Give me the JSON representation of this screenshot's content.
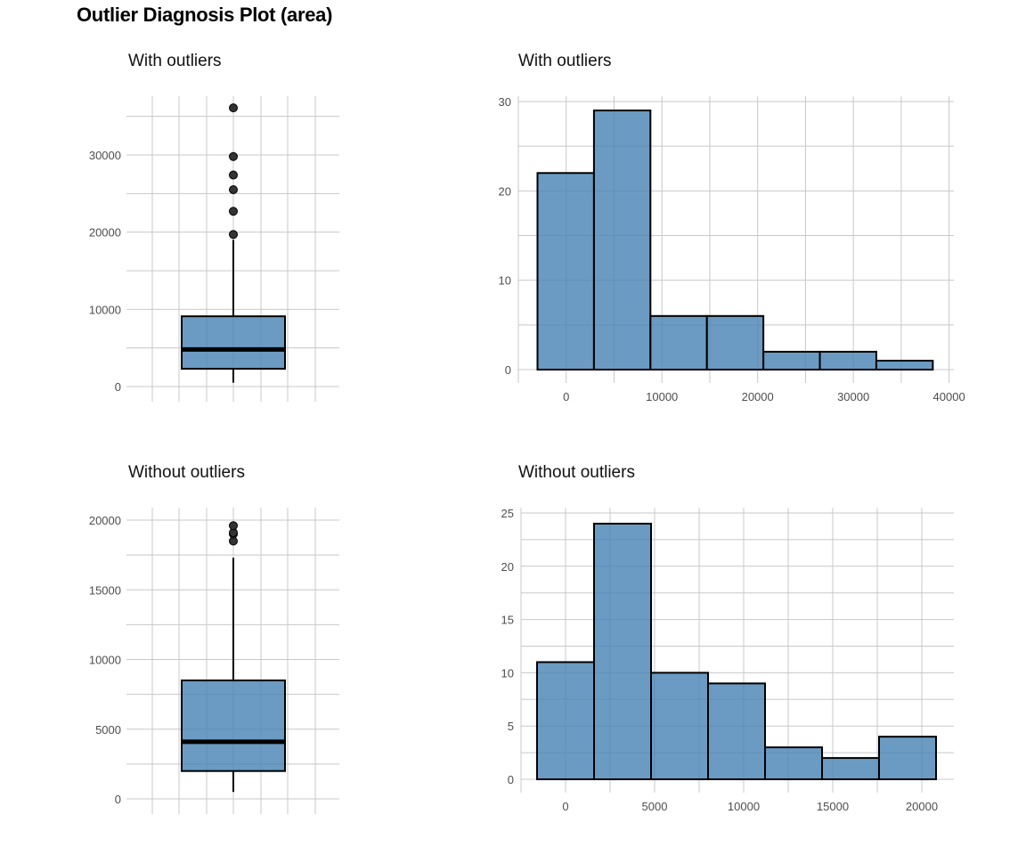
{
  "title": "Outlier Diagnosis Plot (area)",
  "colors": {
    "fill": "#4682b4",
    "fill_opacity": 0.8,
    "stroke": "#000000",
    "grid": "#c8c8c8",
    "tick_label": "#4d4d4d",
    "outlier": "#333333"
  },
  "chart_data": [
    {
      "type": "box",
      "title": "With outliers",
      "y_ticks": [
        0,
        10000,
        20000,
        30000
      ],
      "ylim": [
        0,
        36000
      ],
      "grid": true,
      "stats": {
        "whisker_low": 500,
        "q1": 2300,
        "median": 4800,
        "q3": 9100,
        "whisker_high": 19000
      },
      "outliers": [
        19700,
        22700,
        25500,
        27400,
        29800,
        36100
      ]
    },
    {
      "type": "bar",
      "title": "With outliers",
      "x_ticks": [
        0,
        10000,
        20000,
        30000,
        40000
      ],
      "y_ticks": [
        0,
        10,
        20,
        30
      ],
      "xlim": [
        -5000,
        40500
      ],
      "ylim": [
        0,
        30
      ],
      "grid": true,
      "bins": [
        {
          "x0": -3000,
          "x1": 2900,
          "count": 22
        },
        {
          "x0": 2900,
          "x1": 8800,
          "count": 29
        },
        {
          "x0": 8800,
          "x1": 14700,
          "count": 6
        },
        {
          "x0": 14700,
          "x1": 20600,
          "count": 6
        },
        {
          "x0": 20600,
          "x1": 26500,
          "count": 2
        },
        {
          "x0": 26500,
          "x1": 32400,
          "count": 2
        },
        {
          "x0": 32400,
          "x1": 38300,
          "count": 1
        }
      ]
    },
    {
      "type": "box",
      "title": "Without outliers",
      "y_ticks": [
        0,
        5000,
        10000,
        15000,
        20000
      ],
      "ylim": [
        0,
        20000
      ],
      "grid": true,
      "stats": {
        "whisker_low": 500,
        "q1": 2000,
        "median": 4100,
        "q3": 8500,
        "whisker_high": 17300
      },
      "outliers": [
        18500,
        19000,
        19100,
        19600
      ]
    },
    {
      "type": "bar",
      "title": "Without outliers",
      "x_ticks": [
        0,
        5000,
        10000,
        15000,
        20000
      ],
      "y_ticks": [
        0,
        5,
        10,
        15,
        20,
        25
      ],
      "xlim": [
        -2500,
        21800
      ],
      "ylim": [
        0,
        25
      ],
      "grid": true,
      "bins": [
        {
          "x0": -1600,
          "x1": 1600,
          "count": 11
        },
        {
          "x0": 1600,
          "x1": 4800,
          "count": 24
        },
        {
          "x0": 4800,
          "x1": 8000,
          "count": 10
        },
        {
          "x0": 8000,
          "x1": 11200,
          "count": 9
        },
        {
          "x0": 11200,
          "x1": 14400,
          "count": 3
        },
        {
          "x0": 14400,
          "x1": 17600,
          "count": 2
        },
        {
          "x0": 17600,
          "x1": 20800,
          "count": 4
        }
      ]
    }
  ]
}
